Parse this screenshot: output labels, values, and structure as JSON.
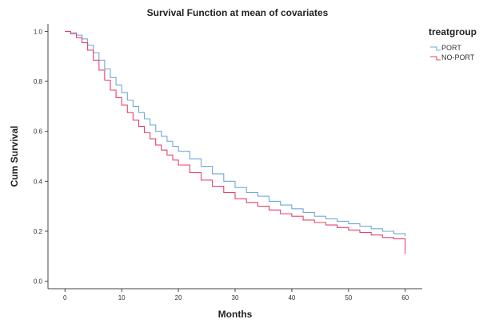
{
  "chart_data": {
    "type": "line",
    "title": "Survival Function at mean of covariates",
    "xlabel": "Months",
    "ylabel": "Cum Survival",
    "xlim": [
      -3,
      63
    ],
    "ylim": [
      -0.03,
      1.03
    ],
    "x_ticks": [
      "0",
      "10",
      "20",
      "30",
      "40",
      "50",
      "60"
    ],
    "x_tick_values": [
      0,
      10,
      20,
      30,
      40,
      50,
      60
    ],
    "y_ticks": [
      "0.0",
      "0.2",
      "0.4",
      "0.6",
      "0.8",
      "1.0"
    ],
    "y_tick_values": [
      0.0,
      0.2,
      0.4,
      0.6,
      0.8,
      1.0
    ],
    "grid": false,
    "legend": {
      "title": "treatgroup",
      "position": "top-right"
    },
    "line_style": "step",
    "series": [
      {
        "name": "PORT",
        "color": "#6fa8dc",
        "x": [
          0,
          1,
          2,
          3,
          4,
          5,
          6,
          7,
          8,
          9,
          10,
          11,
          12,
          13,
          14,
          15,
          16,
          17,
          18,
          19,
          20,
          22,
          24,
          26,
          28,
          30,
          32,
          34,
          36,
          38,
          40,
          42,
          44,
          46,
          48,
          50,
          52,
          54,
          56,
          58,
          60
        ],
        "y": [
          1.0,
          0.995,
          0.985,
          0.97,
          0.945,
          0.915,
          0.885,
          0.85,
          0.815,
          0.785,
          0.755,
          0.725,
          0.7,
          0.675,
          0.65,
          0.625,
          0.6,
          0.58,
          0.56,
          0.54,
          0.52,
          0.49,
          0.46,
          0.43,
          0.4,
          0.375,
          0.355,
          0.34,
          0.32,
          0.305,
          0.29,
          0.275,
          0.26,
          0.25,
          0.24,
          0.23,
          0.22,
          0.21,
          0.2,
          0.19,
          0.18
        ]
      },
      {
        "name": "NO-PORT",
        "color": "#e8416b",
        "x": [
          0,
          1,
          2,
          3,
          4,
          5,
          6,
          7,
          8,
          9,
          10,
          11,
          12,
          13,
          14,
          15,
          16,
          17,
          18,
          19,
          20,
          22,
          24,
          26,
          28,
          30,
          32,
          34,
          36,
          38,
          40,
          42,
          44,
          46,
          48,
          50,
          52,
          54,
          56,
          58,
          60
        ],
        "y": [
          1.0,
          0.99,
          0.975,
          0.955,
          0.925,
          0.885,
          0.845,
          0.805,
          0.765,
          0.735,
          0.705,
          0.675,
          0.645,
          0.62,
          0.595,
          0.57,
          0.545,
          0.525,
          0.505,
          0.485,
          0.465,
          0.435,
          0.405,
          0.38,
          0.355,
          0.33,
          0.315,
          0.3,
          0.285,
          0.27,
          0.26,
          0.245,
          0.235,
          0.225,
          0.215,
          0.205,
          0.195,
          0.185,
          0.175,
          0.17,
          0.11
        ]
      }
    ]
  }
}
